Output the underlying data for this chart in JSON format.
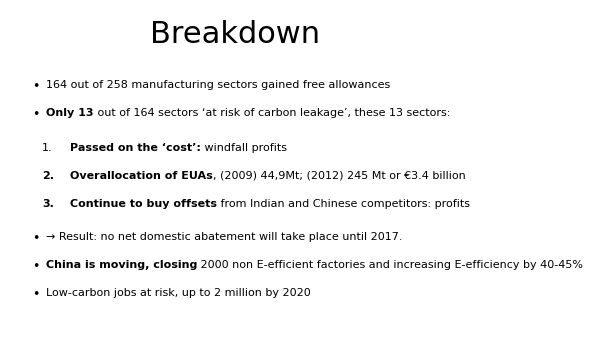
{
  "title": "Breakdown",
  "title_fontsize": 22,
  "background_color": "#ffffff",
  "text_color": "#000000",
  "bullet1": "164 out of 258 manufacturing sectors gained free allowances",
  "bullet2_bold": "Only 13",
  "bullet2_rest": " out of 164 sectors ‘at risk of carbon leakage’, these 13 sectors:",
  "num1_bold": "Passed on the ‘cost’:",
  "num1_rest": " windfall profits",
  "num2_bold": "Overallocation of EUAs",
  "num2_rest": ", (2009) 44,9Mt; (2012) 245 Mt or €3.4 billion",
  "num3_bold": "Continue to buy offsets",
  "num3_rest": " from Indian and Chinese competitors: profits",
  "bullet3_arrow": "→ Result: no net domestic abatement will take place until 2017.",
  "bullet4_bold": "China is moving, closing",
  "bullet4_rest": " 2000 non E-efficient factories and increasing E-efficiency by 40-45%",
  "bullet5": "Low-carbon jobs at risk, up to 2 million by 2020",
  "body_fontsize": 8.0,
  "title_font": "DejaVu Sans",
  "body_font": "DejaVu Sans"
}
